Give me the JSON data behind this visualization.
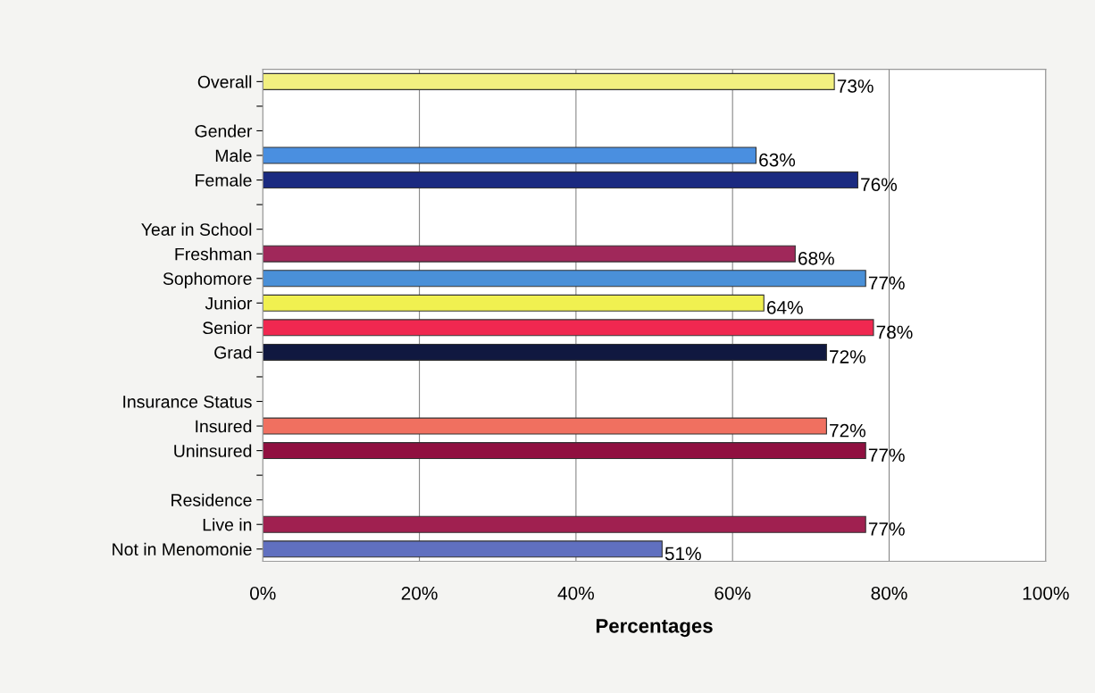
{
  "chart_data": {
    "type": "bar",
    "orientation": "horizontal",
    "xlabel": "Percentages",
    "categories": [
      "Overall",
      null,
      "Gender",
      "Male",
      "Female",
      null,
      "Year in School",
      "Freshman",
      "Sophomore",
      "Junior",
      "Senior",
      "Grad",
      null,
      "Insurance Status",
      "Insured",
      "Uninsured",
      null,
      "Residence",
      "Live in",
      "Not in Menomonie"
    ],
    "values": [
      73,
      null,
      null,
      63,
      76,
      null,
      null,
      68,
      77,
      64,
      78,
      72,
      null,
      null,
      72,
      77,
      null,
      null,
      77,
      51
    ],
    "value_labels": [
      "73%",
      null,
      null,
      "63%",
      "76%",
      null,
      null,
      "68%",
      "77%",
      "64%",
      "78%",
      "72%",
      null,
      null,
      "72%",
      "77%",
      null,
      null,
      "77%",
      "51%"
    ],
    "colors": [
      "#f2f080",
      null,
      null,
      "#4a8fe0",
      "#1a2a80",
      null,
      null,
      "#a0285a",
      "#4a90d8",
      "#f0f050",
      "#f02850",
      "#101840",
      null,
      null,
      "#f07060",
      "#901040",
      null,
      null,
      "#a02050",
      "#6070c0"
    ],
    "xlim": [
      0,
      100
    ],
    "xticks": [
      {
        "value": 0,
        "label": "0%"
      },
      {
        "value": 20,
        "label": "20%"
      },
      {
        "value": 40,
        "label": "40%"
      },
      {
        "value": 60,
        "label": "60%"
      },
      {
        "value": 80,
        "label": "80%"
      },
      {
        "value": 100,
        "label": "100%"
      }
    ],
    "grid": "x",
    "legend": false
  }
}
